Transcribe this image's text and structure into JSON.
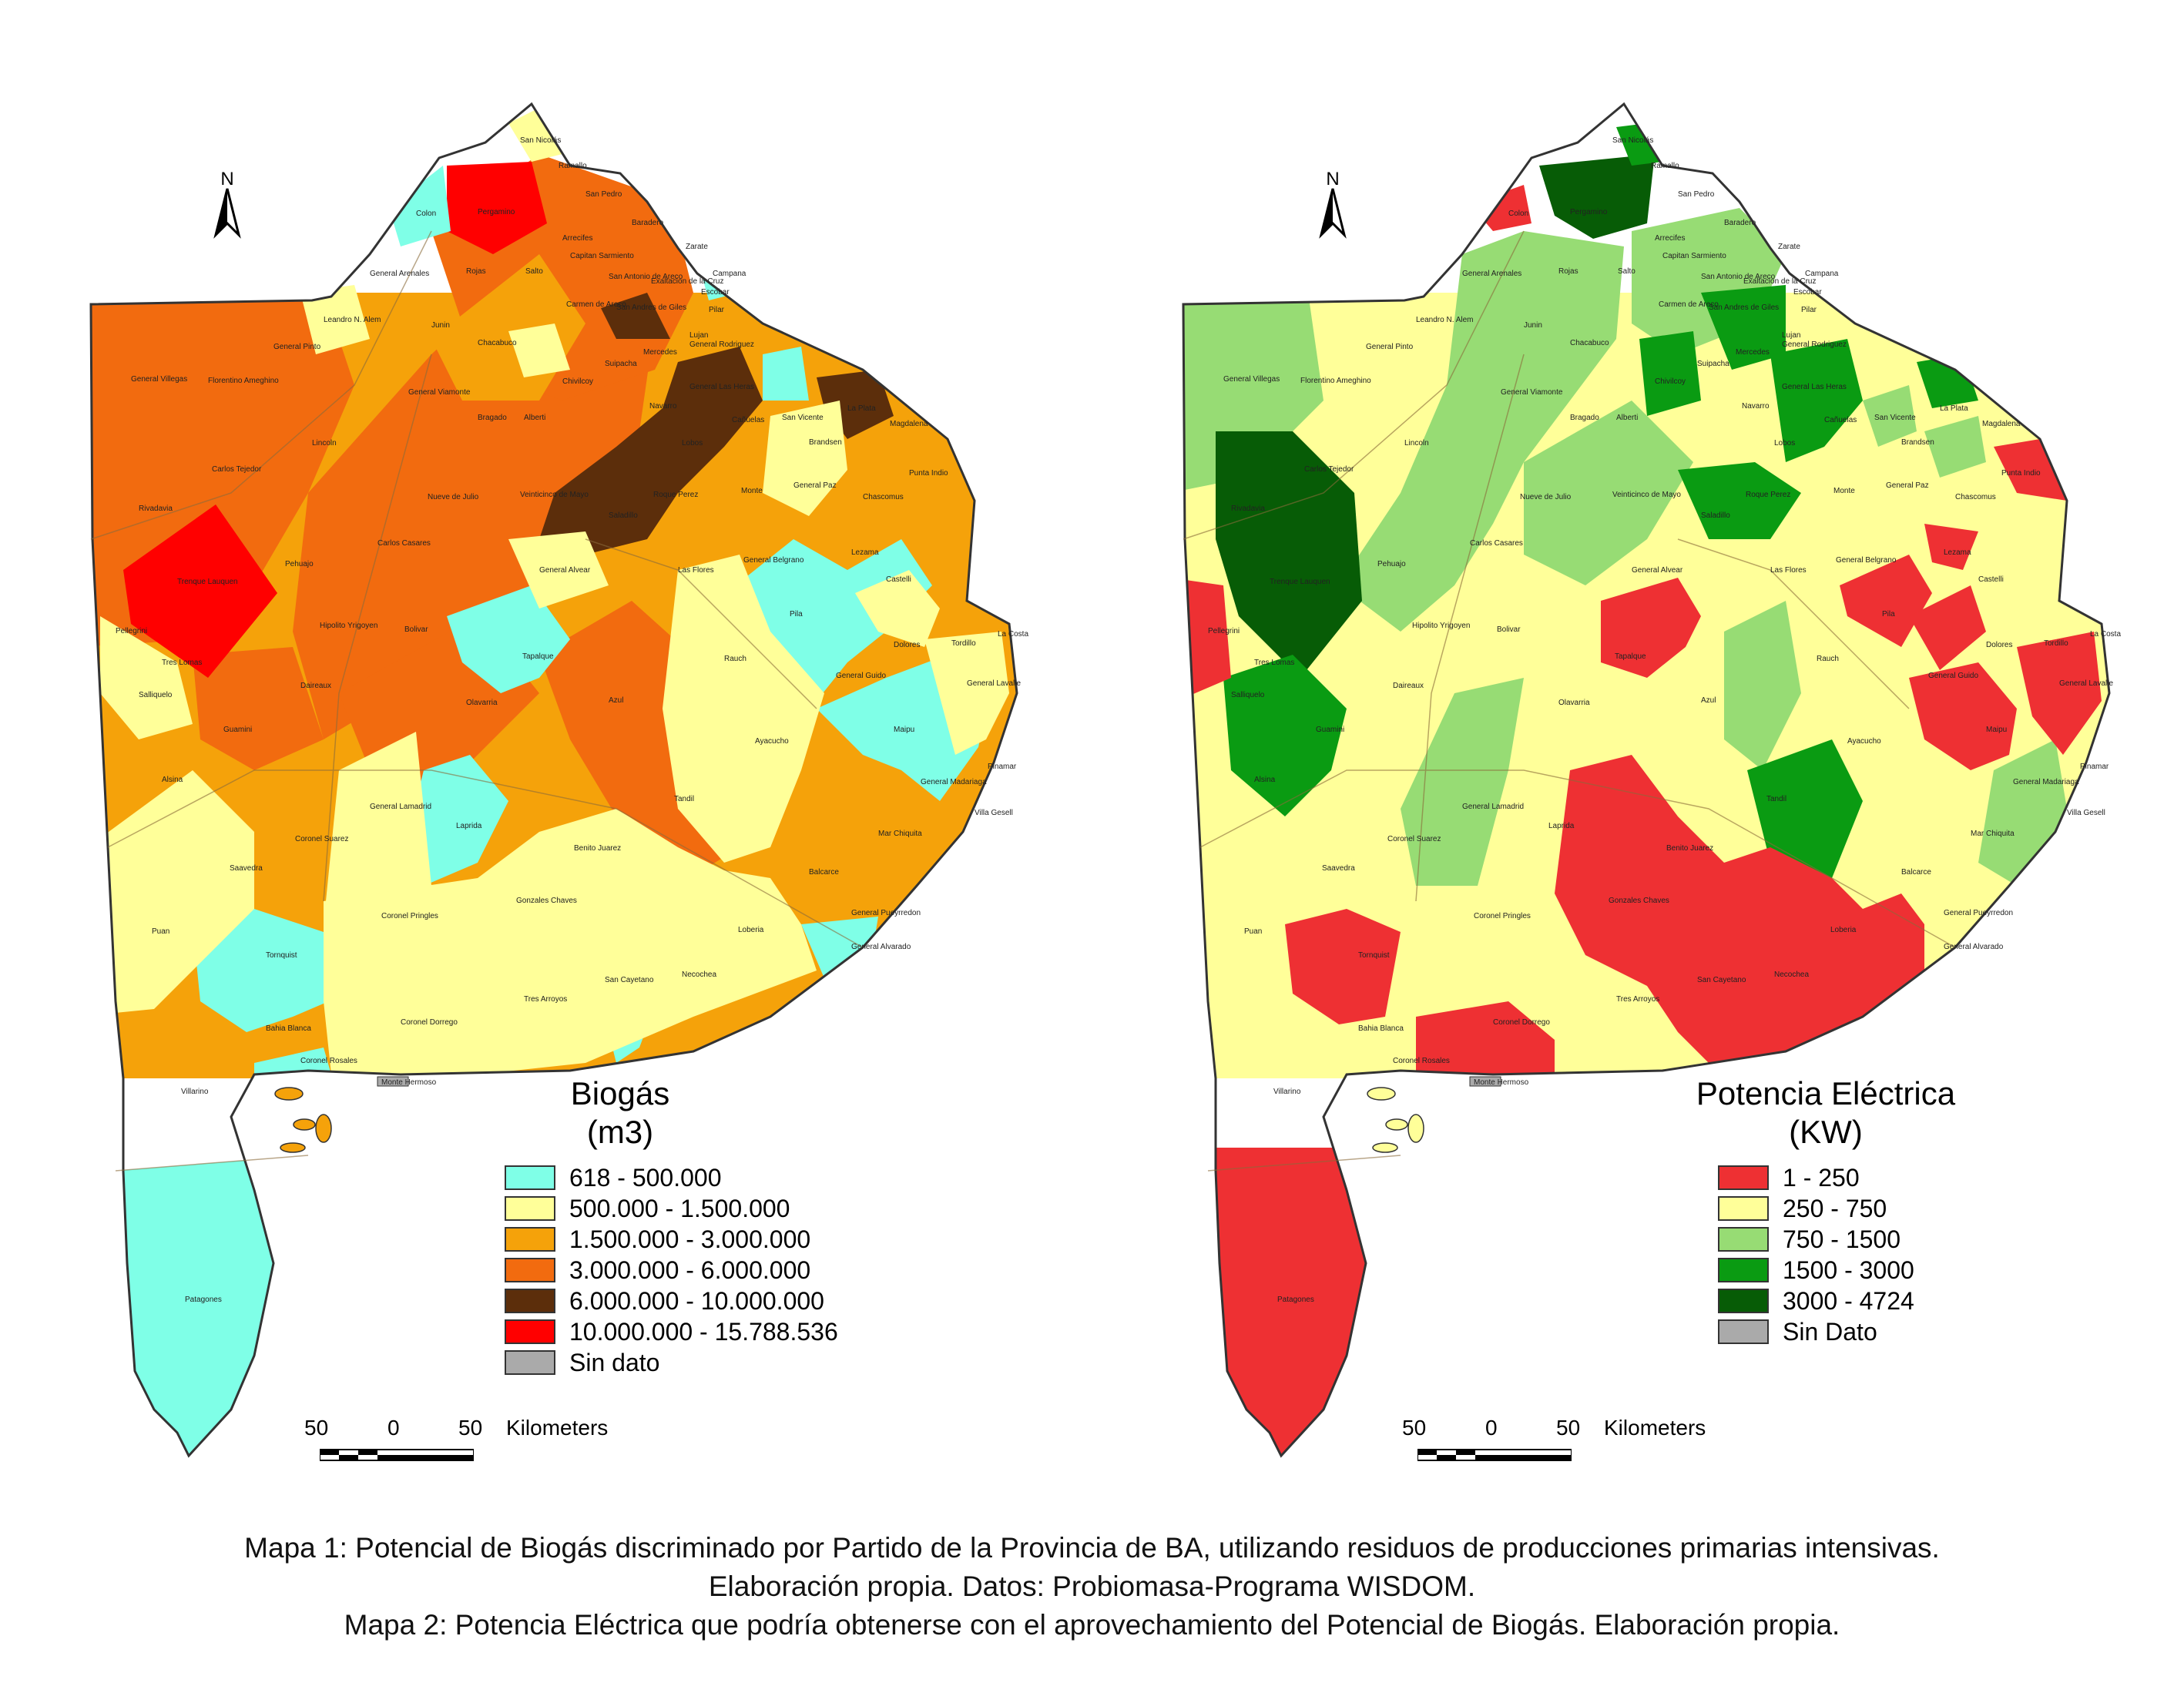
{
  "maps": [
    {
      "id": "map1",
      "legend": {
        "title_line1": "Biogás",
        "title_line2": "(m3)",
        "items": [
          {
            "label": "618 - 500.000",
            "color": "#7fffe7"
          },
          {
            "label": "500.000 - 1.500.000",
            "color": "#ffff99"
          },
          {
            "label": "1.500.000 - 3.000.000",
            "color": "#f5a20a"
          },
          {
            "label": "3.000.000 - 6.000.000",
            "color": "#f26b0f"
          },
          {
            "label": "6.000.000 - 10.000.000",
            "color": "#5c2e0b"
          },
          {
            "label": "10.000.000 - 15.788.536",
            "color": "#ff0000"
          },
          {
            "label": "Sin dato",
            "color": "#aaaaaa"
          }
        ]
      },
      "scalebar": {
        "left": "50",
        "center": "0",
        "right": "50",
        "unit": "Kilometers"
      },
      "north": "N"
    },
    {
      "id": "map2",
      "legend": {
        "title_line1": "Potencia Eléctrica",
        "title_line2": "(KW)",
        "items": [
          {
            "label": "1 - 250",
            "color": "#ee3033"
          },
          {
            "label": "250 - 750",
            "color": "#ffff99"
          },
          {
            "label": "750 - 1500",
            "color": "#97dc74"
          },
          {
            "label": "1500 - 3000",
            "color": "#0a9b12"
          },
          {
            "label": "3000 - 4724",
            "color": "#075c06"
          },
          {
            "label": "Sin Dato",
            "color": "#aaaaaa"
          }
        ]
      },
      "scalebar": {
        "left": "50",
        "center": "0",
        "right": "50",
        "unit": "Kilometers"
      },
      "north": "N"
    }
  ],
  "partidos": [
    "San Nicolás",
    "Ramallo",
    "San Pedro",
    "Baradero",
    "Zarate",
    "Campana",
    "Colon",
    "Pergamino",
    "Arrecifes",
    "Capitan Sarmiento",
    "Salto",
    "Rojas",
    "General Arenales",
    "Leandro N. Alem",
    "Junin",
    "Chacabuco",
    "Carmen de Areco",
    "San Andres de Giles",
    "San Antonio de Areco",
    "Exaltacion de la Cruz",
    "Escobar",
    "Pilar",
    "Mercedes",
    "Lujan",
    "General Rodriguez",
    "Suipacha",
    "Chivilcoy",
    "Navarro",
    "General Las Heras",
    "Lobos",
    "Cañuelas",
    "San Vicente",
    "Brandsen",
    "La Plata",
    "Magdalena",
    "Punta Indio",
    "General Pinto",
    "Florentino Ameghino",
    "General Villegas",
    "General Viamonte",
    "Bragado",
    "Alberti",
    "Lincoln",
    "Carlos Tejedor",
    "Rivadavia",
    "Nueve de Julio",
    "Veinticinco de Mayo",
    "Roque Perez",
    "Saladillo",
    "Monte",
    "General Paz",
    "Chascomus",
    "Carlos Casares",
    "Pehuajo",
    "Trenque Lauquen",
    "General Alvear",
    "General Belgrano",
    "Lezama",
    "Castelli",
    "Pellegrini",
    "Tres Lomas",
    "Salliquelo",
    "Hipolito Yrigoyen",
    "Bolivar",
    "Las Flores",
    "Pila",
    "Dolores",
    "Tordillo",
    "La Costa",
    "General Guido",
    "General Lavalle",
    "Tapalque",
    "Rauch",
    "Maipu",
    "Daireaux",
    "Olavarria",
    "Azul",
    "Ayacucho",
    "Guamini",
    "Alsina",
    "General Madariaga",
    "Pinamar",
    "Villa Gesell",
    "General Lamadrid",
    "Laprida",
    "Tandil",
    "Mar Chiquita",
    "Coronel Suarez",
    "Benito Juarez",
    "Saavedra",
    "Balcarce",
    "General Pueyrredon",
    "Gonzales Chaves",
    "Coronel Pringles",
    "Loberia",
    "Puan",
    "Tornquist",
    "General Alvarado",
    "San Cayetano",
    "Necochea",
    "Coronel Dorrego",
    "Tres Arroyos",
    "Bahia Blanca",
    "Coronel Rosales",
    "Monte Hermoso",
    "Villarino",
    "Patagones"
  ],
  "caption": {
    "line1": "Mapa 1: Potencial de Biogás discriminado por Partido de la Provincia de BA, utilizando residuos de producciones primarias intensivas.",
    "line2": "Elaboración propia. Datos: Probiomasa-Programa WISDOM.",
    "line3": "Mapa 2: Potencia Eléctrica que podría obtenerse con el aprovechamiento del Potencial de Biogás. Elaboración propia."
  }
}
